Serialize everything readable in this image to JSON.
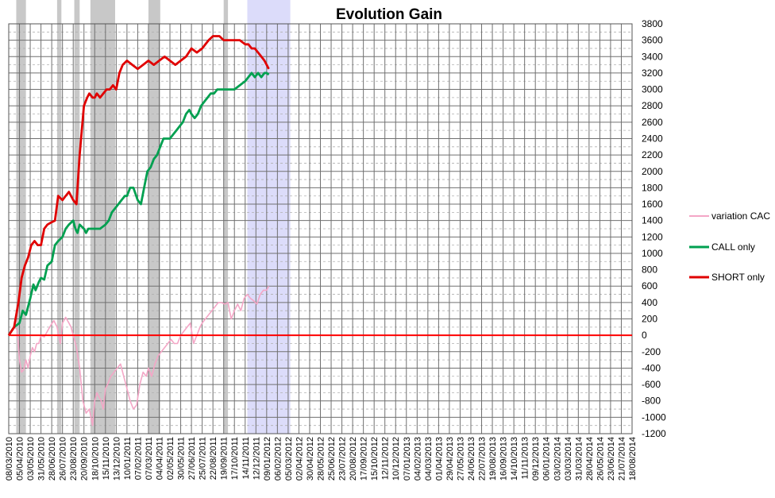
{
  "chart_data": {
    "type": "line",
    "title": "Evolution Gain",
    "ylim": [
      -1200,
      3800
    ],
    "y_step": 200,
    "y_axis_side": "right",
    "grid": true,
    "legend_position": "right",
    "x_tick_labels": [
      "08/03/2010",
      "05/04/2010",
      "03/05/2010",
      "31/05/2010",
      "28/06/2010",
      "26/07/2010",
      "23/08/2010",
      "20/09/2010",
      "18/10/2010",
      "15/11/2010",
      "13/12/2010",
      "10/01/2011",
      "07/02/2011",
      "07/03/2011",
      "04/04/2011",
      "02/05/2011",
      "30/05/2011",
      "27/06/2011",
      "25/07/2011",
      "22/08/2011",
      "19/09/2011",
      "17/10/2011",
      "14/11/2011",
      "12/12/2011",
      "09/01/2012",
      "06/02/2012",
      "05/03/2012",
      "02/04/2012",
      "30/04/2012",
      "28/05/2012",
      "25/06/2012",
      "23/07/2012",
      "20/08/2012",
      "17/09/2012",
      "15/10/2012",
      "12/11/2012",
      "10/12/2012",
      "07/01/2013",
      "04/02/2013",
      "04/03/2013",
      "01/04/2013",
      "29/04/2013",
      "27/05/2013",
      "24/06/2013",
      "22/07/2013",
      "19/08/2013",
      "16/09/2013",
      "14/10/2013",
      "11/11/2013",
      "09/12/2013",
      "06/01/2014",
      "03/02/2014",
      "03/03/2014",
      "31/03/2014",
      "28/04/2014",
      "26/05/2014",
      "23/06/2014",
      "21/07/2014",
      "18/08/2014"
    ],
    "shaded_periods": [
      [
        0.7,
        1.6
      ],
      [
        4.5,
        4.9
      ],
      [
        6.1,
        6.6
      ],
      [
        7.6,
        9.9
      ],
      [
        13.0,
        14.1
      ],
      [
        20.0,
        20.4
      ]
    ],
    "forecast_region": [
      22.2,
      26.2
    ],
    "zero_line_color": "#ff0000",
    "series": [
      {
        "name": "variation CAC",
        "color": "#f4a6c6",
        "x": [
          0.0,
          0.3,
          0.6,
          0.8,
          1.0,
          1.2,
          1.4,
          1.6,
          1.8,
          2.0,
          2.2,
          2.4,
          2.6,
          2.8,
          3.0,
          3.3,
          3.6,
          3.9,
          4.2,
          4.5,
          4.8,
          5.0,
          5.3,
          5.6,
          5.8,
          6.0,
          6.3,
          6.6,
          6.9,
          7.2,
          7.5,
          7.8,
          8.0,
          8.2,
          8.4,
          8.6,
          8.8,
          9.0,
          9.2,
          9.5,
          9.8,
          10.1,
          10.4,
          10.7,
          11.0,
          11.3,
          11.6,
          11.9,
          12.2,
          12.5,
          12.8,
          13.0,
          13.3,
          13.6,
          13.9,
          14.2,
          14.5,
          14.8,
          15.1,
          15.4,
          15.7,
          16.0,
          16.3,
          16.6,
          16.9,
          17.2,
          17.5,
          17.8,
          18.0,
          18.3,
          18.6,
          18.9,
          19.2,
          19.5,
          19.8,
          20.1,
          20.4,
          20.7,
          21.0,
          21.3,
          21.6,
          21.9,
          22.2,
          22.5,
          22.8,
          23.1,
          23.4,
          23.7,
          24.0,
          24.2
        ],
        "values": [
          0,
          60,
          100,
          60,
          -300,
          -450,
          -420,
          -300,
          -400,
          -250,
          -150,
          -200,
          -100,
          -100,
          0,
          -20,
          50,
          120,
          180,
          100,
          -100,
          150,
          220,
          150,
          100,
          0,
          -150,
          -400,
          -800,
          -950,
          -900,
          -1100,
          -800,
          -700,
          -750,
          -800,
          -900,
          -650,
          -600,
          -500,
          -450,
          -400,
          -350,
          -500,
          -650,
          -800,
          -900,
          -850,
          -600,
          -450,
          -500,
          -400,
          -500,
          -350,
          -250,
          -200,
          -150,
          -100,
          -50,
          -100,
          -100,
          0,
          50,
          100,
          150,
          -100,
          0,
          100,
          150,
          200,
          250,
          300,
          350,
          400,
          400,
          380,
          400,
          200,
          300,
          380,
          300,
          450,
          500,
          450,
          420,
          380,
          500,
          550,
          550,
          600
        ]
      },
      {
        "name": "CALL only",
        "color": "#00a050",
        "x": [
          0.0,
          0.5,
          1.0,
          1.3,
          1.6,
          2.0,
          2.3,
          2.5,
          2.8,
          3.0,
          3.3,
          3.6,
          4.0,
          4.3,
          4.6,
          5.0,
          5.3,
          5.6,
          6.0,
          6.2,
          6.4,
          6.6,
          7.0,
          7.2,
          7.4,
          7.6,
          8.0,
          8.5,
          9.0,
          9.3,
          9.6,
          9.9,
          10.2,
          10.5,
          10.8,
          11.0,
          11.3,
          11.6,
          12.0,
          12.3,
          12.6,
          12.9,
          13.2,
          13.5,
          13.8,
          14.1,
          14.4,
          14.7,
          15.0,
          15.3,
          15.6,
          15.9,
          16.2,
          16.5,
          16.8,
          17.0,
          17.3,
          17.6,
          17.9,
          18.2,
          18.5,
          18.8,
          19.1,
          19.4,
          19.7,
          20.0,
          20.3,
          20.6,
          21.0,
          21.5,
          22.0,
          22.3,
          22.6,
          22.9,
          23.2,
          23.5,
          23.8,
          24.0,
          24.2
        ],
        "values": [
          0,
          100,
          150,
          300,
          250,
          450,
          620,
          550,
          650,
          700,
          680,
          850,
          900,
          1100,
          1150,
          1200,
          1300,
          1350,
          1400,
          1300,
          1250,
          1350,
          1300,
          1250,
          1300,
          1300,
          1300,
          1300,
          1350,
          1400,
          1500,
          1550,
          1600,
          1650,
          1700,
          1700,
          1800,
          1800,
          1650,
          1600,
          1800,
          2000,
          2050,
          2150,
          2200,
          2300,
          2400,
          2400,
          2400,
          2450,
          2500,
          2550,
          2600,
          2700,
          2750,
          2700,
          2650,
          2700,
          2800,
          2850,
          2900,
          2950,
          2950,
          3000,
          3000,
          3000,
          3000,
          3000,
          3000,
          3050,
          3100,
          3150,
          3200,
          3150,
          3200,
          3150,
          3200,
          3200,
          3180
        ]
      },
      {
        "name": "SHORT only",
        "color": "#e00000",
        "x": [
          0.0,
          0.5,
          0.9,
          1.2,
          1.5,
          1.8,
          2.1,
          2.4,
          2.7,
          3.0,
          3.3,
          3.6,
          4.0,
          4.3,
          4.6,
          5.0,
          5.3,
          5.6,
          6.0,
          6.3,
          6.6,
          7.0,
          7.3,
          7.5,
          7.8,
          8.0,
          8.2,
          8.5,
          8.8,
          9.1,
          9.4,
          9.7,
          10.0,
          10.3,
          10.6,
          11.0,
          11.5,
          12.0,
          12.5,
          13.0,
          13.5,
          14.0,
          14.5,
          15.0,
          15.5,
          16.0,
          16.5,
          17.0,
          17.5,
          18.0,
          18.3,
          18.6,
          19.0,
          19.3,
          19.6,
          20.0,
          20.3,
          20.6,
          21.0,
          21.5,
          22.0,
          22.3,
          22.6,
          22.9,
          23.2,
          23.5,
          23.8,
          24.0,
          24.2
        ],
        "values": [
          0,
          100,
          400,
          700,
          850,
          950,
          1100,
          1150,
          1100,
          1100,
          1300,
          1350,
          1380,
          1400,
          1700,
          1650,
          1700,
          1750,
          1650,
          1600,
          2200,
          2800,
          2900,
          2950,
          2900,
          2900,
          2950,
          2900,
          2950,
          3000,
          3000,
          3050,
          3000,
          3200,
          3300,
          3350,
          3300,
          3250,
          3300,
          3350,
          3300,
          3350,
          3400,
          3350,
          3300,
          3350,
          3400,
          3500,
          3450,
          3500,
          3550,
          3600,
          3650,
          3650,
          3650,
          3600,
          3600,
          3600,
          3600,
          3600,
          3550,
          3550,
          3500,
          3500,
          3450,
          3400,
          3350,
          3300,
          3250
        ]
      }
    ]
  }
}
